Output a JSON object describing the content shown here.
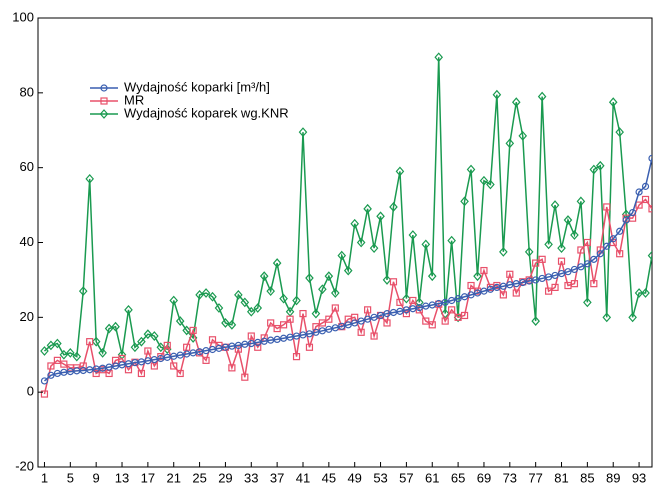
{
  "chart_data": {
    "type": "line",
    "x": [
      1,
      2,
      3,
      4,
      5,
      6,
      7,
      8,
      9,
      10,
      11,
      12,
      13,
      14,
      15,
      16,
      17,
      18,
      19,
      20,
      21,
      22,
      23,
      24,
      25,
      26,
      27,
      28,
      29,
      30,
      31,
      32,
      33,
      34,
      35,
      36,
      37,
      38,
      39,
      40,
      41,
      42,
      43,
      44,
      45,
      46,
      47,
      48,
      49,
      50,
      51,
      52,
      53,
      54,
      55,
      56,
      57,
      58,
      59,
      60,
      61,
      62,
      63,
      64,
      65,
      66,
      67,
      68,
      69,
      70,
      71,
      72,
      73,
      74,
      75,
      76,
      77,
      78,
      79,
      80,
      81,
      82,
      83,
      84,
      85,
      86,
      87,
      88,
      89,
      90,
      91,
      92,
      93,
      94,
      95
    ],
    "series": [
      {
        "name": "Wydajność koparki [m³/h]",
        "color": "#3a5fb0",
        "marker": "circle",
        "values": [
          3,
          4.5,
          5,
          5.3,
          5.5,
          5.7,
          5.8,
          6,
          6.2,
          6.4,
          6.7,
          7,
          7.3,
          7.6,
          7.9,
          8.1,
          8.4,
          8.7,
          9,
          9.3,
          9.6,
          9.9,
          10.2,
          10.5,
          10.8,
          11.1,
          11.4,
          11.7,
          12,
          12.3,
          12.5,
          12.8,
          13,
          13.3,
          13.6,
          13.9,
          14.1,
          14.4,
          14.7,
          15,
          15.3,
          15.6,
          16,
          16.4,
          16.8,
          17.2,
          17.6,
          18,
          18.5,
          19,
          19.5,
          20,
          20.5,
          21,
          21.3,
          21.6,
          22,
          22.3,
          22.6,
          23,
          23.3,
          23.7,
          24,
          24.5,
          25,
          25.5,
          26,
          26.5,
          27,
          27.5,
          28,
          28.3,
          28.7,
          29,
          29.3,
          29.7,
          30,
          30.4,
          30.8,
          31.2,
          31.7,
          32.2,
          32.8,
          33.5,
          34.3,
          35.5,
          37,
          39,
          41,
          43,
          46,
          48,
          53.5,
          55,
          62.5
        ]
      },
      {
        "name": "MR",
        "color": "#e8506a",
        "marker": "square",
        "values": [
          -0.5,
          7,
          8.5,
          7.5,
          6.5,
          6.5,
          7,
          13.5,
          5,
          6,
          5,
          8.5,
          9,
          6,
          8,
          5,
          11,
          7,
          9.5,
          12.5,
          7,
          5,
          12,
          16.5,
          10.5,
          8.5,
          14,
          12.5,
          12,
          6.5,
          11.5,
          4,
          15,
          12,
          14.5,
          18.5,
          17,
          18,
          19.5,
          9.5,
          21,
          12,
          17.5,
          18.5,
          19.5,
          22.5,
          17.5,
          19.5,
          20,
          16,
          22,
          15,
          20.5,
          18.5,
          29.5,
          24,
          21,
          24.5,
          22,
          19,
          18,
          23.5,
          19,
          22,
          20,
          20.5,
          28.5,
          27,
          32.5,
          28,
          28.5,
          26,
          31.5,
          26.5,
          29.5,
          30,
          34.5,
          35.5,
          27,
          28,
          35,
          28.5,
          29,
          38,
          40,
          29,
          38,
          49.5,
          40,
          37,
          46.5,
          46.5,
          50,
          51.5,
          49
        ]
      },
      {
        "name": "Wydajność koparek wg.KNR",
        "color": "#1a9a50",
        "marker": "diamond",
        "values": [
          11,
          12.5,
          13,
          10,
          10.5,
          9.5,
          27,
          57,
          13.5,
          10.5,
          17,
          17.5,
          10,
          22,
          12,
          13.5,
          15.5,
          15,
          12,
          11.5,
          24.5,
          19,
          16.5,
          14.5,
          26,
          26.5,
          25.5,
          22.5,
          18.5,
          18,
          26,
          24,
          21.5,
          22.5,
          31,
          27,
          34.5,
          25,
          21.5,
          24.5,
          69.5,
          30.5,
          21,
          27.5,
          31,
          26.5,
          36.5,
          32.5,
          45,
          40,
          49,
          38.5,
          47,
          30,
          49.5,
          59,
          25,
          42,
          24,
          39.5,
          31,
          89.5,
          21,
          40.5,
          20,
          51,
          59.5,
          31,
          56.5,
          55.5,
          79.5,
          37.5,
          66.5,
          77.5,
          68.5,
          37.5,
          19,
          79,
          39.5,
          50,
          38.5,
          46,
          42,
          51,
          24,
          59.5,
          60.5,
          20,
          77.5,
          69.5,
          47.5,
          20,
          26.5,
          26.5,
          36.5
        ]
      }
    ],
    "xlim": [
      0,
      95
    ],
    "xticks": [
      1,
      5,
      9,
      13,
      17,
      21,
      25,
      29,
      33,
      37,
      41,
      45,
      49,
      53,
      57,
      61,
      65,
      69,
      73,
      77,
      81,
      85,
      89,
      93
    ],
    "ylim": [
      -20,
      100
    ],
    "yticks": [
      -20,
      0,
      20,
      40,
      60,
      80,
      100
    ],
    "legend": "top-left",
    "grid": false
  }
}
